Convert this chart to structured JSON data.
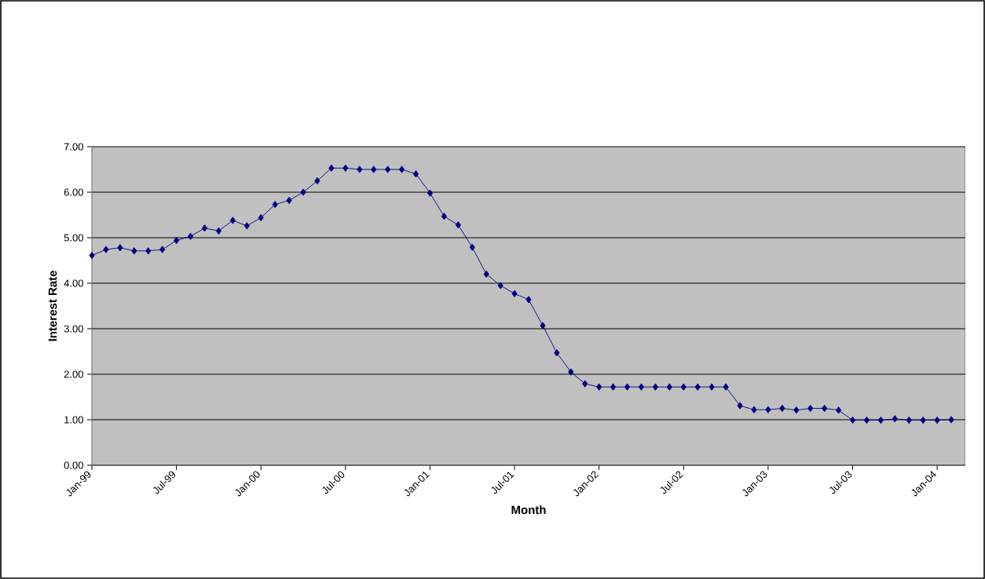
{
  "chart_data": {
    "type": "line",
    "xlabel": "Month",
    "ylabel": "Interest Rate",
    "x": [
      "1999-01",
      "1999-02",
      "1999-03",
      "1999-04",
      "1999-05",
      "1999-06",
      "1999-07",
      "1999-08",
      "1999-09",
      "1999-10",
      "1999-11",
      "1999-12",
      "2000-01",
      "2000-02",
      "2000-03",
      "2000-04",
      "2000-05",
      "2000-06",
      "2000-07",
      "2000-08",
      "2000-09",
      "2000-10",
      "2000-11",
      "2000-12",
      "2001-01",
      "2001-02",
      "2001-03",
      "2001-04",
      "2001-05",
      "2001-06",
      "2001-07",
      "2001-08",
      "2001-09",
      "2001-10",
      "2001-11",
      "2001-12",
      "2002-01",
      "2002-02",
      "2002-03",
      "2002-04",
      "2002-05",
      "2002-06",
      "2002-07",
      "2002-08",
      "2002-09",
      "2002-10",
      "2002-11",
      "2002-12",
      "2003-01",
      "2003-02",
      "2003-03",
      "2003-04",
      "2003-05",
      "2003-06",
      "2003-07",
      "2003-08",
      "2003-09",
      "2003-10",
      "2003-11",
      "2003-12",
      "2004-01",
      "2004-02"
    ],
    "series": [
      {
        "color": "#000080",
        "values": [
          4.61,
          4.74,
          4.78,
          4.71,
          4.71,
          4.74,
          4.94,
          5.03,
          5.21,
          5.15,
          5.38,
          5.26,
          5.44,
          5.73,
          5.82,
          6.0,
          6.25,
          6.53,
          6.53,
          6.5,
          6.5,
          6.5,
          6.5,
          6.4,
          5.98,
          5.47,
          5.28,
          4.79,
          4.2,
          3.95,
          3.77,
          3.64,
          3.07,
          2.47,
          2.05,
          1.79,
          1.72,
          1.72,
          1.72,
          1.72,
          1.72,
          1.72,
          1.72,
          1.72,
          1.72,
          1.72,
          1.31,
          1.22,
          1.22,
          1.25,
          1.21,
          1.25,
          1.25,
          1.21,
          0.99,
          0.99,
          0.99,
          1.02,
          0.99,
          0.99,
          0.99,
          1.0
        ]
      }
    ],
    "xlim": [
      "1999-01",
      "2004-03"
    ],
    "xticks": [
      {
        "value": "1999-01",
        "label": "Jan-99"
      },
      {
        "value": "1999-07",
        "label": "Jul-99"
      },
      {
        "value": "2000-01",
        "label": "Jan-00"
      },
      {
        "value": "2000-07",
        "label": "Jul-00"
      },
      {
        "value": "2001-01",
        "label": "Jan-01"
      },
      {
        "value": "2001-07",
        "label": "Jul-01"
      },
      {
        "value": "2002-01",
        "label": "Jan-02"
      },
      {
        "value": "2002-07",
        "label": "Jul-02"
      },
      {
        "value": "2003-01",
        "label": "Jan-03"
      },
      {
        "value": "2003-07",
        "label": "Jul-03"
      },
      {
        "value": "2004-01",
        "label": "Jan-04"
      }
    ],
    "ylim": [
      0,
      7
    ],
    "yticks": [
      {
        "value": 0,
        "label": "0.00"
      },
      {
        "value": 1,
        "label": "1.00"
      },
      {
        "value": 2,
        "label": "2.00"
      },
      {
        "value": 3,
        "label": "3.00"
      },
      {
        "value": 4,
        "label": "4.00"
      },
      {
        "value": 5,
        "label": "5.00"
      },
      {
        "value": 6,
        "label": "6.00"
      },
      {
        "value": 7,
        "label": "7.00"
      }
    ],
    "grid": "y",
    "marker": "diamond",
    "line_style": "solid"
  }
}
